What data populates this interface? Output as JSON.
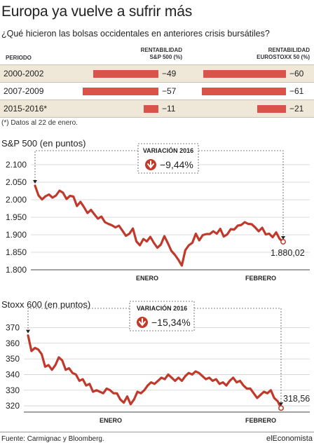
{
  "header": {
    "title": "Europa ya vuelve a sufrir más",
    "subtitle": "¿Qué hicieron las bolsas occidentales en anteriores crisis bursátiles?"
  },
  "table": {
    "col_period": "PERIODO",
    "col_sp_line1": "RENTABILIDAD",
    "col_sp_line2": "S&P 500 (%)",
    "col_eu_line1": "RENTABILIDAD",
    "col_eu_line2": "EUROSTOXX 50 (%)",
    "rows": [
      {
        "period": "2000-2002",
        "sp": -49,
        "sp_label": "−49",
        "eu": -60,
        "eu_label": "−60"
      },
      {
        "period": "2007-2009",
        "sp": -57,
        "sp_label": "−57",
        "eu": -61,
        "eu_label": "−61"
      },
      {
        "period": "2015-2016*",
        "sp": -11,
        "sp_label": "−11",
        "eu": -21,
        "eu_label": "−21"
      }
    ],
    "note": "(*) Datos al 22 de enero."
  },
  "chart_data": [
    {
      "type": "line",
      "title": "S&P 500 (en puntos)",
      "xlabel": "",
      "ylabel": "",
      "x_labels": [
        "ENERO",
        "FEBRERO"
      ],
      "yticks": [
        "2.100",
        "2.050",
        "2.000",
        "1.950",
        "1.900",
        "1.850",
        "1.800"
      ],
      "ylim": [
        1800,
        2100
      ],
      "grid": true,
      "badge_title": "VARIACIÓN 2016",
      "badge_value": "−9,44%",
      "end_label": "1.880,02",
      "color": "#c0392b",
      "values": [
        2040,
        2012,
        2001,
        2010,
        2015,
        2006,
        2012,
        2026,
        2020,
        2002,
        2011,
        2009,
        1982,
        1994,
        1979,
        1962,
        1971,
        1958,
        1946,
        1952,
        1936,
        1931,
        1927,
        1921,
        1926,
        1912,
        1897,
        1903,
        1918,
        1881,
        1870,
        1888,
        1881,
        1894,
        1877,
        1863,
        1872,
        1896,
        1876,
        1854,
        1843,
        1829,
        1812,
        1856,
        1870,
        1877,
        1903,
        1884,
        1899,
        1902,
        1902,
        1910,
        1903,
        1917,
        1895,
        1901,
        1916,
        1915,
        1926,
        1928,
        1936,
        1931,
        1930,
        1921,
        1910,
        1920,
        1901,
        1903,
        1893,
        1907,
        1888,
        1880
      ]
    },
    {
      "type": "line",
      "title": "Stoxx 600 (en puntos)",
      "xlabel": "",
      "ylabel": "",
      "x_labels": [
        "ENERO",
        "FEBRERO"
      ],
      "yticks": [
        "370",
        "360",
        "350",
        "340",
        "330",
        "320"
      ],
      "ylim": [
        316,
        372
      ],
      "grid": true,
      "badge_title": "VARIACIÓN 2016",
      "badge_value": "−15,34%",
      "end_label": "318,56",
      "color": "#c0392b",
      "values": [
        365,
        355,
        357,
        356,
        353,
        345,
        346,
        343,
        346,
        351,
        349,
        343,
        344,
        341,
        340,
        336,
        337,
        333,
        334,
        329,
        330,
        329,
        328,
        331,
        330,
        328,
        328,
        324,
        322,
        326,
        321,
        324,
        329,
        328,
        330,
        333,
        335,
        334,
        336,
        338,
        337,
        340,
        338,
        336,
        338,
        336,
        339,
        341,
        340,
        342,
        341,
        339,
        337,
        338,
        336,
        337,
        334,
        335,
        333,
        336,
        338,
        335,
        336,
        333,
        331,
        331,
        328,
        325,
        327,
        329,
        328,
        330,
        325,
        323,
        318.56
      ]
    }
  ],
  "footer": {
    "source": "Fuente: Carmignac y Bloomberg.",
    "brand": "elEconomista"
  }
}
